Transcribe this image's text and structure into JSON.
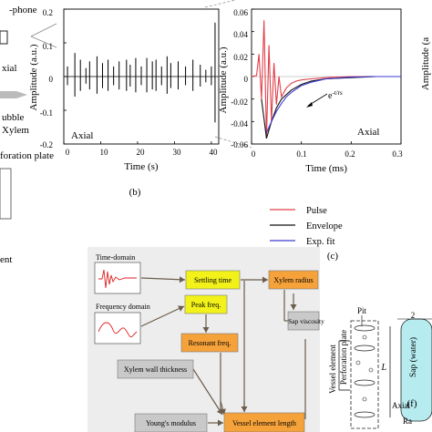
{
  "left_schematic": {
    "labels": [
      "-phone",
      "xial",
      "ubble",
      "Xylem",
      "foration plate",
      "ent"
    ]
  },
  "panel_b": {
    "caption": "(b)",
    "xlabel": "Time (s)",
    "ylabel": "Amplitude (a.u.)",
    "annotation": "Axial",
    "xticks": [
      "0",
      "10",
      "20",
      "30",
      "40"
    ],
    "yticks": [
      "0.2",
      "0.1",
      "0",
      "-0.1",
      "-0.2"
    ]
  },
  "panel_c": {
    "caption": "(c)",
    "xlabel": "Time (ms)",
    "ylabel": "Amplitude (a.u.)",
    "annotation": "Axial",
    "envelope_label": "e",
    "envelope_exponent": "-t/rs",
    "xticks": [
      "0",
      "0.1",
      "0.2",
      "0.3"
    ],
    "yticks": [
      "0.06",
      "0.04",
      "0.02",
      "0",
      "-0.02",
      "-0.04",
      "-0.06"
    ],
    "legend": [
      {
        "label": "Pulse",
        "color": "#e0404a"
      },
      {
        "label": "Envelope",
        "color": "#111111"
      },
      {
        "label": "Exp. fit",
        "color": "#3a3ad0"
      }
    ]
  },
  "right_edge": {
    "ylabel_fragment": "Amplitude (a"
  },
  "flowchart": {
    "time_domain": "Time-domain",
    "frequency_domain": "Frequency domain",
    "settling_time": "Settling time",
    "xylem_radius": "Xylem radius",
    "sap_viscosity": "Sap viscosity",
    "peak_freq": "Peak freq.",
    "resonant_freq": "Resonant freq.",
    "xylem_wall_thickness": "Xylem wall thickness",
    "vessel_element_length": "Vessel element length",
    "youngs_modulus": "Young's modulus",
    "colors": {
      "yellow": "#f2f21a",
      "orange": "#f6a23a",
      "gray": "#c9c9c9"
    }
  },
  "panel_f": {
    "caption": "(f)",
    "pit": "Pit",
    "perforation_plate": "Perforation plate",
    "vessel_element": "Vessel element",
    "sap_water": "Sap (water)",
    "axial": "Axial",
    "length_symbol": "L",
    "top_number": "2",
    "radial_fragment": "Ra"
  },
  "chart_data": [
    {
      "type": "line",
      "title": "",
      "xlabel": "Time (s)",
      "ylabel": "Amplitude (a.u.)",
      "xlim": [
        0,
        42
      ],
      "ylim": [
        -0.2,
        0.2
      ],
      "series": [
        {
          "values_description_free": true,
          "x": [
            1,
            3,
            4.5,
            6,
            7,
            9,
            10.5,
            12,
            13.5,
            15,
            17,
            18,
            19.5,
            21,
            22.5,
            24,
            25,
            26.5,
            28,
            29,
            31,
            33,
            35,
            37,
            38.5,
            40,
            41
          ],
          "y": [
            0.03,
            0.07,
            0.05,
            0.025,
            0.045,
            0.06,
            0.04,
            0.05,
            0.03,
            0.045,
            0.05,
            0.035,
            0.055,
            0.03,
            0.055,
            0.045,
            0.05,
            0.03,
            0.06,
            0.04,
            0.045,
            0.03,
            0.05,
            0.035,
            0.02,
            0.03,
            0.16
          ]
        }
      ]
    },
    {
      "type": "line",
      "title": "",
      "xlabel": "Time (ms)",
      "ylabel": "Amplitude (a.u.)",
      "xlim": [
        0,
        0.3
      ],
      "ylim": [
        -0.06,
        0.06
      ],
      "series": [
        {
          "name": "Pulse",
          "x": [
            0,
            0.01,
            0.015,
            0.02,
            0.025,
            0.03,
            0.035,
            0.04,
            0.045,
            0.05,
            0.055,
            0.06,
            0.07,
            0.08,
            0.09,
            0.1,
            0.12,
            0.15,
            0.2,
            0.25,
            0.3
          ],
          "y": [
            0,
            0.001,
            0.02,
            -0.02,
            0.05,
            -0.055,
            0.028,
            -0.04,
            0.012,
            -0.025,
            0.0,
            -0.018,
            -0.01,
            -0.006,
            -0.004,
            -0.003,
            -0.002,
            -0.001,
            0.0,
            0.0,
            0.0
          ]
        },
        {
          "name": "Envelope",
          "x": [
            0.02,
            0.03,
            0.04,
            0.05,
            0.06,
            0.08,
            0.1,
            0.12,
            0.15,
            0.2,
            0.25,
            0.3
          ],
          "y": [
            -0.02,
            -0.055,
            -0.04,
            -0.028,
            -0.02,
            -0.012,
            -0.007,
            -0.004,
            -0.002,
            -0.001,
            0.0,
            0.0
          ]
        },
        {
          "name": "Exp. fit",
          "x": [
            0.03,
            0.04,
            0.05,
            0.06,
            0.07,
            0.08,
            0.1,
            0.12,
            0.15,
            0.2,
            0.25,
            0.3
          ],
          "y": [
            -0.05,
            -0.04,
            -0.031,
            -0.024,
            -0.018,
            -0.014,
            -0.008,
            -0.005,
            -0.002,
            -0.0005,
            0.0,
            0.0
          ]
        }
      ]
    }
  ]
}
